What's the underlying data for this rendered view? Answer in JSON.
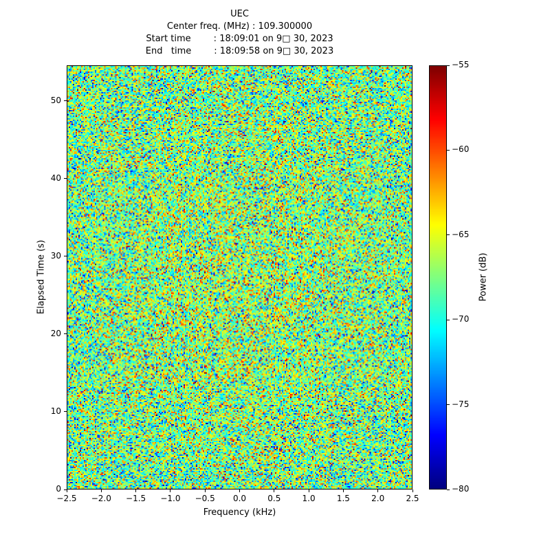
{
  "chart_data": {
    "type": "heatmap",
    "title": "UEC",
    "info_lines": [
      "Center freq. (MHz) : 109.300000",
      "Start time        : 18:09:01 on 9□ 30, 2023",
      "End   time        : 18:09:58 on 9□ 30, 2023"
    ],
    "xlabel": "Frequency (kHz)",
    "ylabel": "Elapsed Time (s)",
    "colorbar_label": "Power (dB)",
    "xlim": [
      -2.5,
      2.5
    ],
    "ylim": [
      0,
      54.6
    ],
    "clim": [
      -80,
      -55
    ],
    "x_ticks": {
      "values": [
        -2.5,
        -2.0,
        -1.5,
        -1.0,
        -0.5,
        0.0,
        0.5,
        1.0,
        1.5,
        2.0,
        2.5
      ],
      "labels": [
        "−2.5",
        "−2.0",
        "−1.5",
        "−1.0",
        "−0.5",
        "0.0",
        "0.5",
        "1.0",
        "1.5",
        "2.0",
        "2.5"
      ]
    },
    "y_ticks": {
      "values": [
        0,
        10,
        20,
        30,
        40,
        50
      ],
      "labels": [
        "0",
        "10",
        "20",
        "30",
        "40",
        "50"
      ]
    },
    "colorbar_ticks": {
      "values": [
        -55,
        -60,
        -65,
        -70,
        -75,
        -80
      ],
      "labels": [
        "−55",
        "−60",
        "−65",
        "−70",
        "−75",
        "−80"
      ]
    },
    "colormap": "jet",
    "grid": false,
    "legend": "none",
    "noise": {
      "distribution": "gaussian",
      "mean_db": -68,
      "std_db": 4,
      "center_bias_db": 1.2,
      "seed": 20230930,
      "cols": 252,
      "rows": 308
    }
  }
}
